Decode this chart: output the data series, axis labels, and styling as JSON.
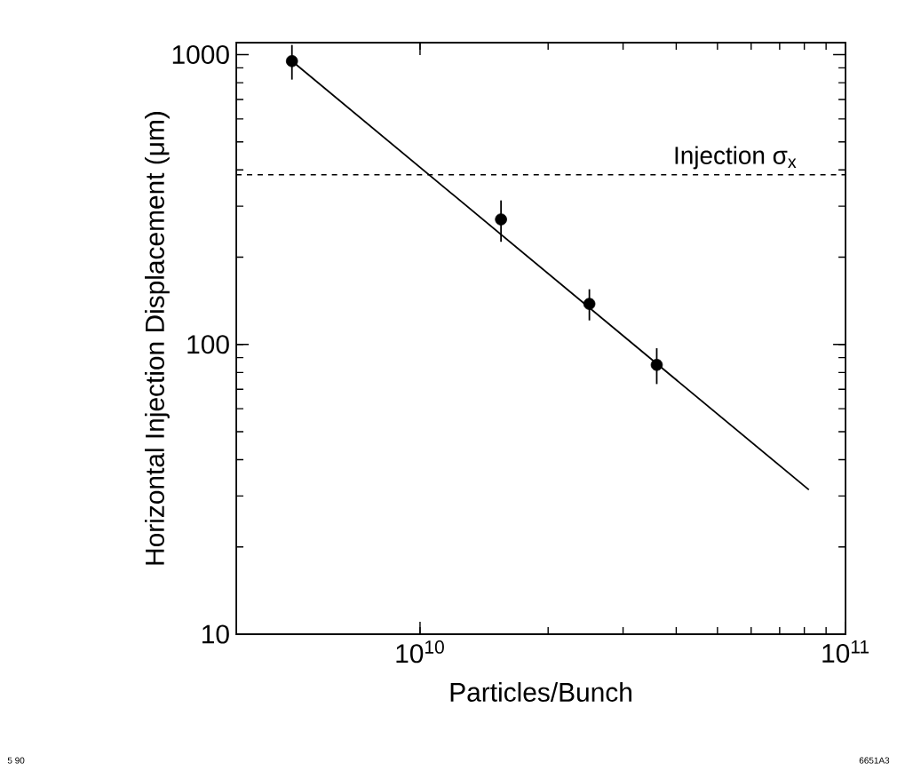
{
  "chart_data": {
    "type": "scatter",
    "xlabel": "Particles/Bunch",
    "ylabel": "Horizontal Injection Displacement (μm)",
    "log": "xy",
    "xlim": [
      3700000000.0,
      100000000000.0
    ],
    "ylim": [
      10,
      1100
    ],
    "xticks": [
      {
        "value": 10000000000.0,
        "label": "10$^{10}$"
      },
      {
        "value": 100000000000.0,
        "label": "10$^{11}$"
      }
    ],
    "yticks": [
      10,
      100,
      1000
    ],
    "series": [
      {
        "color": "#000000",
        "x": [
          5000000000.0,
          15500000000.0,
          25000000000.0,
          36000000000.0
        ],
        "values": [
          950,
          270,
          138,
          85
        ],
        "errors": [
          130,
          44,
          17,
          12
        ]
      },
      {
        "type": "line",
        "color": "#000000",
        "line_style": "solid",
        "marker": "none",
        "x": [
          5000000000.0,
          82000000000.0
        ],
        "values": [
          950,
          31.5
        ]
      }
    ],
    "ref_lines": [
      {
        "axis": "y",
        "value": 385,
        "label": "Injection σ$_{x}$",
        "line_style": "dashed"
      }
    ],
    "annotations": [
      "5 90",
      "6651A3"
    ],
    "marker": "circle",
    "grid": false
  }
}
